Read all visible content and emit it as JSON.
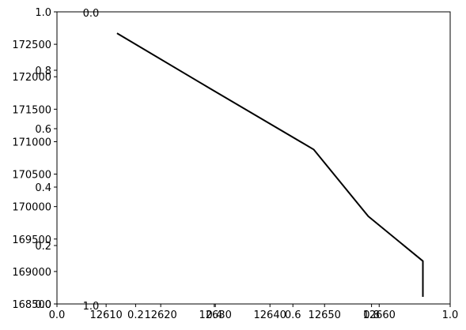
{
  "chart_data": {
    "type": "line",
    "title": "",
    "xlabel": "",
    "ylabel": "",
    "x": [
      12612,
      12629,
      12648,
      12658,
      12668,
      12668
    ],
    "y": [
      172670,
      171820,
      170880,
      169850,
      169160,
      168610
    ],
    "xlim": [
      12601,
      12673
    ],
    "ylim": [
      168500,
      173000
    ],
    "x_ticks": [
      12610,
      12620,
      12630,
      12640,
      12650,
      12660
    ],
    "x_tick_labels": [
      "12610",
      "12620",
      "12630",
      "12640",
      "12650",
      "12660"
    ],
    "y_ticks": [
      168500,
      169000,
      169500,
      170000,
      170500,
      171000,
      171500,
      172000,
      172500
    ],
    "y_tick_labels": [
      "168500",
      "169000",
      "169500",
      "170000",
      "170500",
      "171000",
      "171500",
      "172000",
      "172500"
    ],
    "overlay_axis_ticks": [
      0.0,
      0.2,
      0.4,
      0.6,
      0.8,
      1.0
    ],
    "overlay_axis_tick_labels": [
      "0.0",
      "0.2",
      "0.4",
      "0.6",
      "0.8",
      "1.0"
    ],
    "stray_labels": [
      "0.0",
      "1.0"
    ],
    "line_color": "#000000",
    "grid": false,
    "legend": "none"
  }
}
